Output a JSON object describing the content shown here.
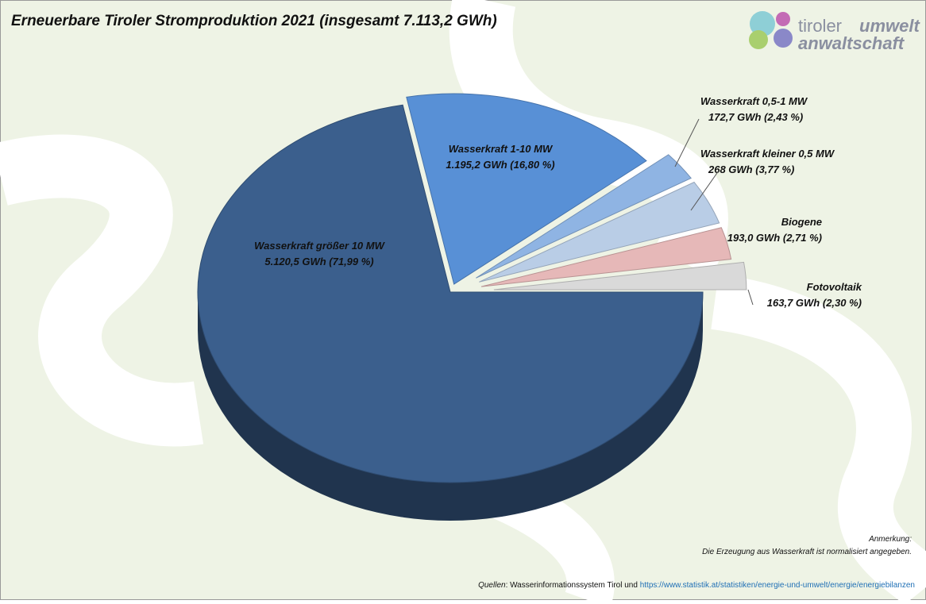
{
  "chart_data": {
    "type": "pie3d",
    "title": "Erneuerbare Tiroler Stromproduktion 2021 (insgesamt 7.113,2 GWh)",
    "categories": [
      "Wasserkraft größer 10 MW",
      "Wasserkraft 1-10 MW",
      "Wasserkraft 0,5-1 MW",
      "Wasserkraft kleiner 0,5 MW",
      "Biogene",
      "Fotovoltaik"
    ],
    "values": [
      5120.5,
      1195.2,
      172.7,
      268,
      193.0,
      163.7
    ],
    "value_labels": [
      "5.120,5 GWh (71,99 %)",
      "1.195,2 GWh (16,80 %)",
      "172,7 GWh (2,43 %)",
      "268 GWh (3,77 %)",
      "193,0 GWh (2,71 %)",
      "163,7 GWh (2,30 %)"
    ],
    "colors": [
      "#3b5f8d",
      "#5890d6",
      "#8fb4e3",
      "#b9cde6",
      "#e6b8b8",
      "#d9d9d9"
    ],
    "logo": [
      "tiroler",
      "umwelt",
      "anwaltschaft"
    ],
    "note_title": "Anmerkung:",
    "note": "Die Erzeugung aus Wasserkraft ist normalisiert angegeben.",
    "source_label": "Quellen",
    "source_text": ": Wasserinformationssystem Tirol und",
    "source_url": "https://www.statistik.at/statistiken/energie-und-umwelt/energie/energiebilanzen"
  }
}
